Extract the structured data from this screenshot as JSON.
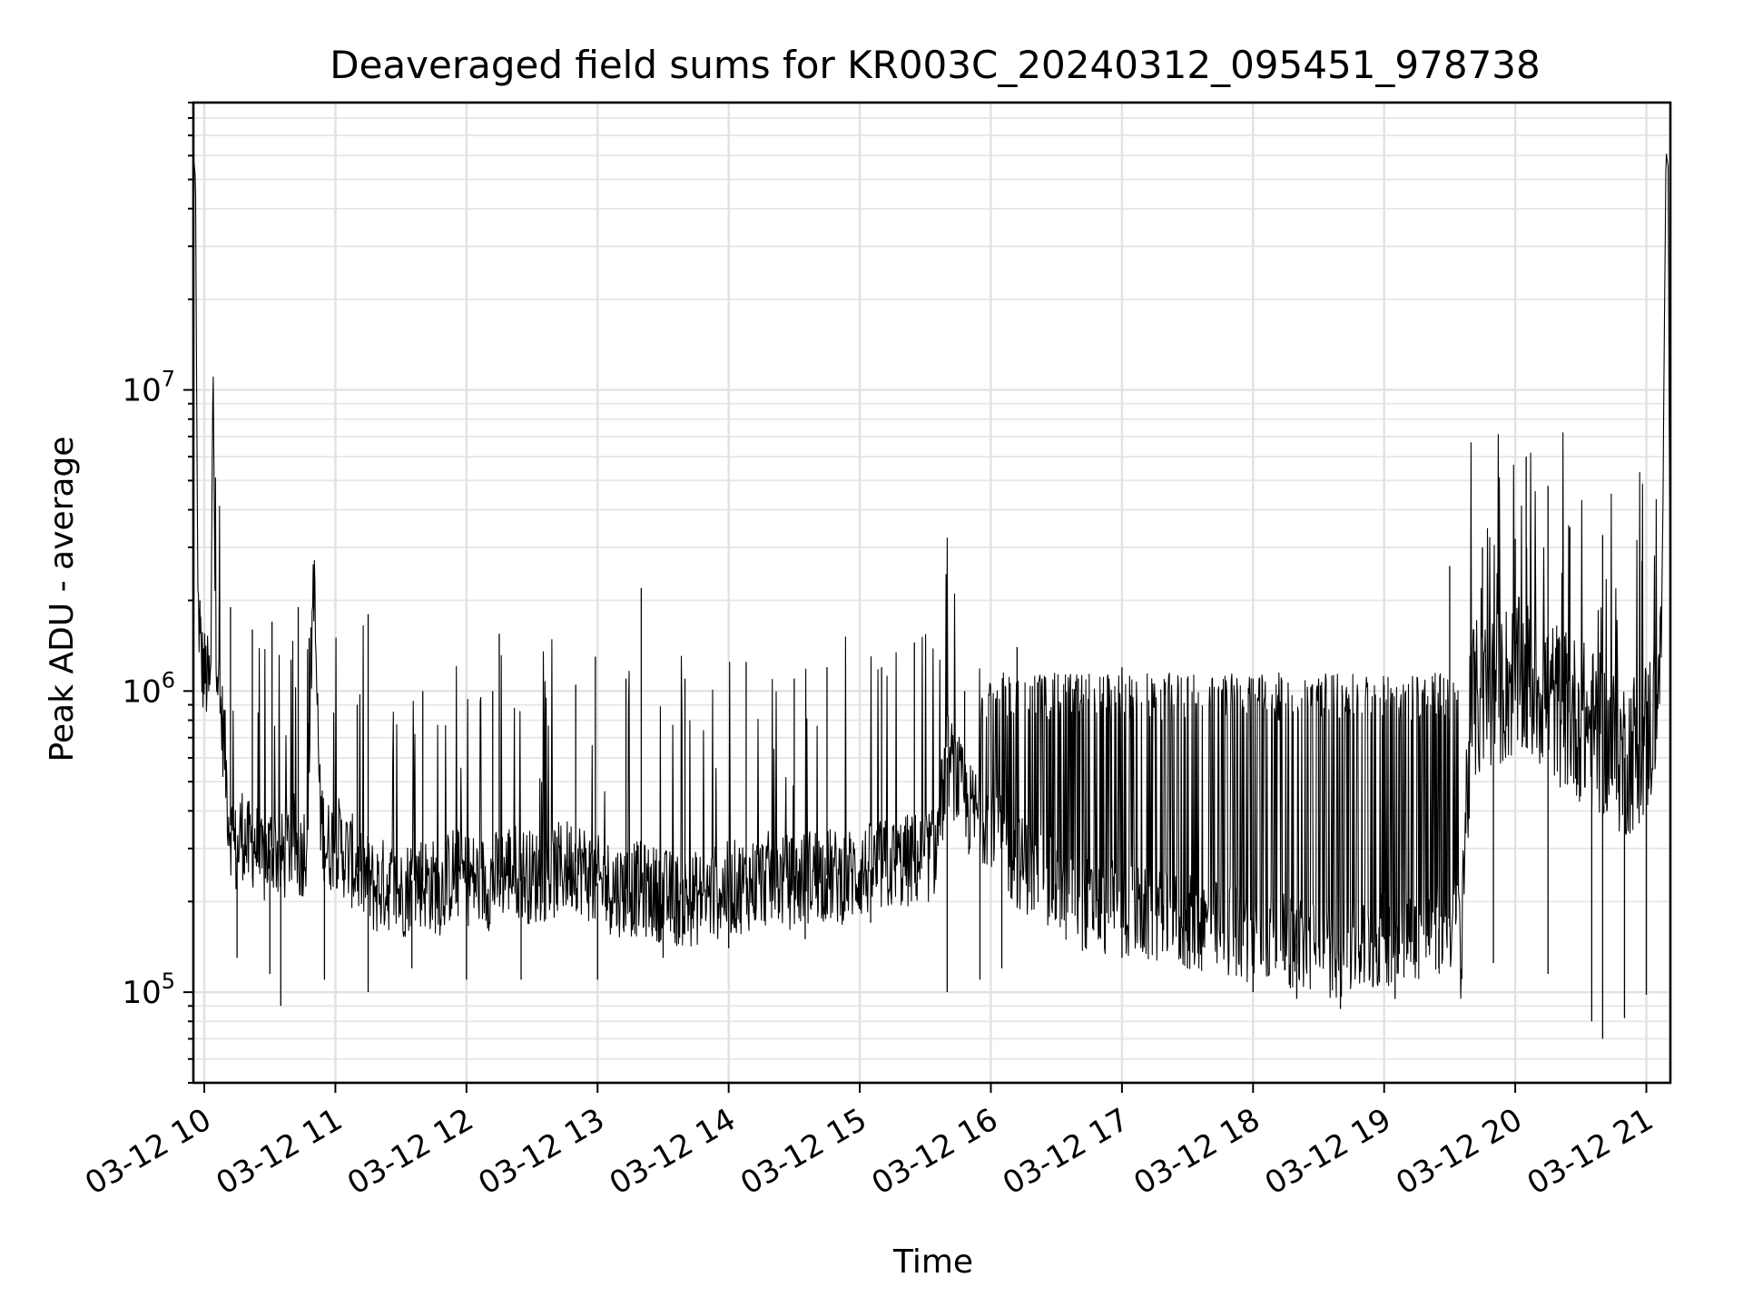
{
  "chart_data": {
    "type": "line",
    "title": "Deaveraged field sums for KR003C_20240312_095451_978738",
    "xlabel": "Time",
    "ylabel": "Peak ADU - average",
    "yscale": "log",
    "grid": true,
    "line_color": "#000000",
    "grid_color": "#e2e2e2",
    "xlim": [
      "2024-03-12 09:55",
      "2024-03-12 21:11"
    ],
    "ylim": [
      50000,
      90000000
    ],
    "x_ticks": [
      "2024-03-12 10:00",
      "2024-03-12 11:00",
      "2024-03-12 12:00",
      "2024-03-12 13:00",
      "2024-03-12 14:00",
      "2024-03-12 15:00",
      "2024-03-12 16:00",
      "2024-03-12 17:00",
      "2024-03-12 18:00",
      "2024-03-12 19:00",
      "2024-03-12 20:00",
      "2024-03-12 21:00"
    ],
    "x_tick_labels": [
      "03-12 10",
      "03-12 11",
      "03-12 12",
      "03-12 13",
      "03-12 14",
      "03-12 15",
      "03-12 16",
      "03-12 17",
      "03-12 18",
      "03-12 19",
      "03-12 20",
      "03-12 21"
    ],
    "y_ticks": [
      100000,
      1000000,
      10000000
    ],
    "y_tick_labels": [
      {
        "base": "10",
        "exp": "5"
      },
      {
        "base": "10",
        "exp": "6"
      },
      {
        "base": "10",
        "exp": "7"
      }
    ],
    "series": [
      {
        "x": [
          "2024-03-12 09:55",
          "2024-03-12 09:56",
          "2024-03-12 09:57",
          "2024-03-12 09:59",
          "2024-03-12 10:01",
          "2024-03-12 10:03",
          "2024-03-12 10:04",
          "2024-03-12 10:05",
          "2024-03-12 10:07",
          "2024-03-12 10:09",
          "2024-03-12 10:11",
          "2024-03-12 10:13",
          "2024-03-12 10:15",
          "2024-03-12 10:17",
          "2024-03-12 10:20",
          "2024-03-12 10:23",
          "2024-03-12 10:26",
          "2024-03-12 10:29",
          "2024-03-12 10:32",
          "2024-03-12 10:35",
          "2024-03-12 10:38",
          "2024-03-12 10:41",
          "2024-03-12 10:44",
          "2024-03-12 10:47",
          "2024-03-12 10:50",
          "2024-03-12 10:53",
          "2024-03-12 10:56",
          "2024-03-12 11:00",
          "2024-03-12 11:06",
          "2024-03-12 11:12",
          "2024-03-12 11:18",
          "2024-03-12 11:24",
          "2024-03-12 11:30",
          "2024-03-12 11:36",
          "2024-03-12 11:42",
          "2024-03-12 11:48",
          "2024-03-12 11:54",
          "2024-03-12 12:00",
          "2024-03-12 12:10",
          "2024-03-12 12:20",
          "2024-03-12 12:30",
          "2024-03-12 12:40",
          "2024-03-12 12:50",
          "2024-03-12 13:00",
          "2024-03-12 13:10",
          "2024-03-12 13:20",
          "2024-03-12 13:30",
          "2024-03-12 13:40",
          "2024-03-12 13:50",
          "2024-03-12 14:00",
          "2024-03-12 14:10",
          "2024-03-12 14:20",
          "2024-03-12 14:30",
          "2024-03-12 14:40",
          "2024-03-12 14:50",
          "2024-03-12 15:00",
          "2024-03-12 15:10",
          "2024-03-12 15:20",
          "2024-03-12 15:30",
          "2024-03-12 15:35",
          "2024-03-12 15:40",
          "2024-03-12 15:45",
          "2024-03-12 15:50",
          "2024-03-12 16:00",
          "2024-03-12 16:10",
          "2024-03-12 16:20",
          "2024-03-12 16:30",
          "2024-03-12 16:40",
          "2024-03-12 16:50",
          "2024-03-12 17:00",
          "2024-03-12 17:10",
          "2024-03-12 17:20",
          "2024-03-12 17:30",
          "2024-03-12 17:40",
          "2024-03-12 17:50",
          "2024-03-12 18:00",
          "2024-03-12 18:10",
          "2024-03-12 18:20",
          "2024-03-12 18:30",
          "2024-03-12 18:40",
          "2024-03-12 18:50",
          "2024-03-12 19:00",
          "2024-03-12 19:10",
          "2024-03-12 19:20",
          "2024-03-12 19:30",
          "2024-03-12 19:35",
          "2024-03-12 19:40",
          "2024-03-12 19:50",
          "2024-03-12 20:00",
          "2024-03-12 20:10",
          "2024-03-12 20:20",
          "2024-03-12 20:30",
          "2024-03-12 20:40",
          "2024-03-12 20:50",
          "2024-03-12 21:00",
          "2024-03-12 21:03",
          "2024-03-12 21:05",
          "2024-03-12 21:07",
          "2024-03-12 21:09",
          "2024-03-12 21:10",
          "2024-03-12 21:11"
        ],
        "y": [
          60000000,
          50000000,
          2000000,
          1200000,
          1100000,
          1000000,
          13500000,
          1800000,
          900000,
          700000,
          400000,
          320000,
          280000,
          350000,
          300000,
          320000,
          260000,
          290000,
          310000,
          270000,
          300000,
          320000,
          280000,
          330000,
          2600000,
          400000,
          300000,
          320000,
          280000,
          250000,
          220000,
          230000,
          210000,
          240000,
          230000,
          220000,
          250000,
          240000,
          230000,
          260000,
          240000,
          250000,
          270000,
          230000,
          220000,
          220000,
          210000,
          200000,
          210000,
          220000,
          230000,
          240000,
          230000,
          250000,
          240000,
          250000,
          260000,
          270000,
          280000,
          300000,
          600000,
          500000,
          400000,
          380000,
          280000,
          250000,
          220000,
          200000,
          190000,
          190000,
          180000,
          175000,
          170000,
          165000,
          160000,
          155000,
          150000,
          145000,
          140000,
          135000,
          140000,
          150000,
          155000,
          160000,
          165000,
          170000,
          900000,
          1000000,
          1100000,
          1050000,
          900000,
          800000,
          700000,
          600000,
          700000,
          800000,
          1000000,
          1500000,
          62000000,
          55000000,
          1000000
        ],
        "spikes_up": [
          {
            "x": "2024-03-12 09:58",
            "y": 2000000
          },
          {
            "x": "2024-03-12 10:12",
            "y": 1900000
          },
          {
            "x": "2024-03-12 10:22",
            "y": 1600000
          },
          {
            "x": "2024-03-12 10:31",
            "y": 1700000
          },
          {
            "x": "2024-03-12 10:43",
            "y": 1900000
          },
          {
            "x": "2024-03-12 10:48",
            "y": 1500000
          },
          {
            "x": "2024-03-12 11:10",
            "y": 900000
          },
          {
            "x": "2024-03-12 11:15",
            "y": 1800000
          },
          {
            "x": "2024-03-12 11:40",
            "y": 1000000
          },
          {
            "x": "2024-03-12 12:12",
            "y": 1000000
          },
          {
            "x": "2024-03-12 12:15",
            "y": 1550000
          },
          {
            "x": "2024-03-12 12:50",
            "y": 1050000
          },
          {
            "x": "2024-03-12 12:59",
            "y": 1300000
          },
          {
            "x": "2024-03-12 13:13",
            "y": 1100000
          },
          {
            "x": "2024-03-12 13:20",
            "y": 2200000
          },
          {
            "x": "2024-03-12 13:40",
            "y": 1100000
          },
          {
            "x": "2024-03-12 14:08",
            "y": 1250000
          },
          {
            "x": "2024-03-12 14:30",
            "y": 1100000
          },
          {
            "x": "2024-03-12 14:45",
            "y": 1200000
          },
          {
            "x": "2024-03-12 15:10",
            "y": 1200000
          },
          {
            "x": "2024-03-12 15:25",
            "y": 1450000
          },
          {
            "x": "2024-03-12 15:48",
            "y": 1000000
          },
          {
            "x": "2024-03-12 16:12",
            "y": 1400000
          },
          {
            "x": "2024-03-12 16:40",
            "y": 1100000
          },
          {
            "x": "2024-03-12 17:00",
            "y": 1200000
          },
          {
            "x": "2024-03-12 17:30",
            "y": 1100000
          },
          {
            "x": "2024-03-12 18:00",
            "y": 1100000
          },
          {
            "x": "2024-03-12 18:30",
            "y": 1100000
          },
          {
            "x": "2024-03-12 19:00",
            "y": 1050000
          },
          {
            "x": "2024-03-12 19:30",
            "y": 2600000
          },
          {
            "x": "2024-03-12 19:45",
            "y": 3000000
          },
          {
            "x": "2024-03-12 20:00",
            "y": 3200000
          },
          {
            "x": "2024-03-12 20:05",
            "y": 6000000
          },
          {
            "x": "2024-03-12 20:15",
            "y": 4800000
          },
          {
            "x": "2024-03-12 20:25",
            "y": 3500000
          },
          {
            "x": "2024-03-12 20:40",
            "y": 3300000
          },
          {
            "x": "2024-03-12 20:58",
            "y": 2700000
          }
        ],
        "spikes_down": [
          {
            "x": "2024-03-12 10:15",
            "y": 130000
          },
          {
            "x": "2024-03-12 10:30",
            "y": 115000
          },
          {
            "x": "2024-03-12 10:35",
            "y": 90000
          },
          {
            "x": "2024-03-12 10:55",
            "y": 110000
          },
          {
            "x": "2024-03-12 11:15",
            "y": 100000
          },
          {
            "x": "2024-03-12 11:35",
            "y": 120000
          },
          {
            "x": "2024-03-12 12:00",
            "y": 110000
          },
          {
            "x": "2024-03-12 12:25",
            "y": 110000
          },
          {
            "x": "2024-03-12 13:00",
            "y": 110000
          },
          {
            "x": "2024-03-12 13:30",
            "y": 130000
          },
          {
            "x": "2024-03-12 14:00",
            "y": 140000
          },
          {
            "x": "2024-03-12 14:35",
            "y": 150000
          },
          {
            "x": "2024-03-12 15:05",
            "y": 170000
          },
          {
            "x": "2024-03-12 15:40",
            "y": 100000
          },
          {
            "x": "2024-03-12 15:55",
            "y": 110000
          },
          {
            "x": "2024-03-12 16:05",
            "y": 120000
          },
          {
            "x": "2024-03-12 17:00",
            "y": 130000
          },
          {
            "x": "2024-03-12 17:30",
            "y": 120000
          },
          {
            "x": "2024-03-12 18:00",
            "y": 100000
          },
          {
            "x": "2024-03-12 18:20",
            "y": 95000
          },
          {
            "x": "2024-03-12 18:40",
            "y": 88000
          },
          {
            "x": "2024-03-12 19:05",
            "y": 95000
          },
          {
            "x": "2024-03-12 19:25",
            "y": 120000
          },
          {
            "x": "2024-03-12 19:50",
            "y": 125000
          },
          {
            "x": "2024-03-12 20:15",
            "y": 115000
          },
          {
            "x": "2024-03-12 20:35",
            "y": 80000
          },
          {
            "x": "2024-03-12 20:40",
            "y": 70000
          },
          {
            "x": "2024-03-12 20:50",
            "y": 82000
          },
          {
            "x": "2024-03-12 21:00",
            "y": 98000
          }
        ]
      }
    ]
  }
}
